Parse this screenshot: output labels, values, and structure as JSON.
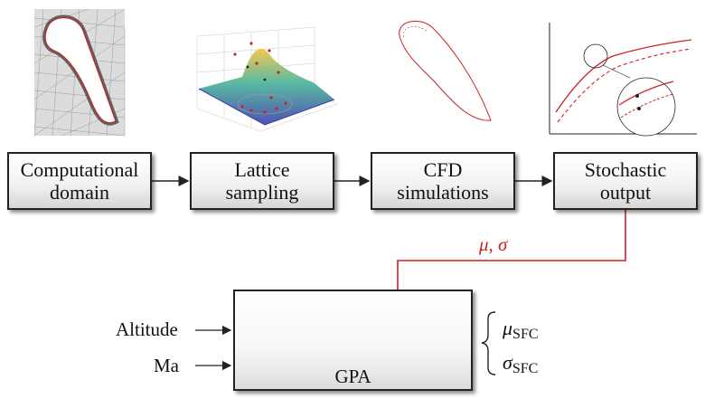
{
  "boxes": {
    "computational": "Computational\ndomain",
    "lattice": "Lattice\nsampling",
    "cfd": "CFD\nsimulations",
    "stochastic": "Stochastic\noutput",
    "gpa": "GPA"
  },
  "inputs": {
    "altitude": "Altitude",
    "mach": "Ma"
  },
  "link_label": "μ, σ",
  "outputs": {
    "mu_symbol": "μ",
    "mu_sub": "SFC",
    "sigma_symbol": "σ",
    "sigma_sub": "SFC"
  },
  "colors": {
    "accent_red": "#cc2222",
    "box_border": "#222222"
  }
}
